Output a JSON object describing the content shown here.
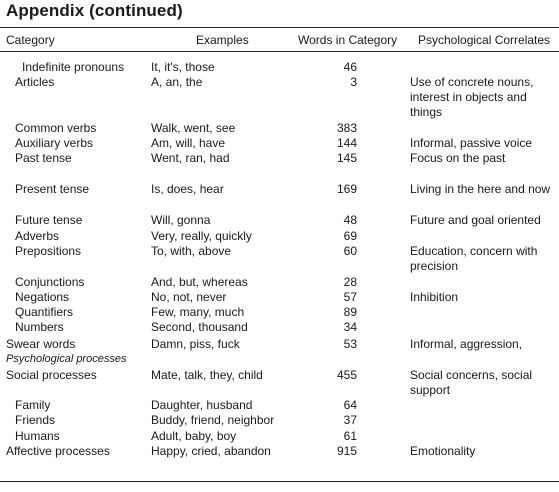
{
  "title": "Appendix (continued)",
  "headers": {
    "category": "Category",
    "examples": "Examples",
    "words": "Words in Category",
    "psych": "Psychological Correlates"
  },
  "rows": [
    {
      "category": "Indefinite pronouns",
      "examples": "It, it's, those",
      "words": "46",
      "psych": ""
    },
    {
      "category": "Articles",
      "examples": "A, an, the",
      "words": "3",
      "psych": "Use of concrete nouns, interest in objects and things"
    },
    {
      "category": "Common verbs",
      "examples": "Walk, went, see",
      "words": "383",
      "psych": ""
    },
    {
      "category": "Auxiliary verbs",
      "examples": "Am, will, have",
      "words": "144",
      "psych": "Informal, passive voice"
    },
    {
      "category": "Past tense",
      "examples": "Went, ran, had",
      "words": "145",
      "psych": "Focus on the past"
    },
    {
      "category": "Present tense",
      "examples": "Is, does, hear",
      "words": "169",
      "psych": "Living in the here and now"
    },
    {
      "category": "Future tense",
      "examples": "Will, gonna",
      "words": "48",
      "psych": "Future and goal oriented"
    },
    {
      "category": "Adverbs",
      "examples": "Very, really, quickly",
      "words": "69",
      "psych": ""
    },
    {
      "category": "Prepositions",
      "examples": "To, with, above",
      "words": "60",
      "psych": "Education, concern with precision"
    },
    {
      "category": "Conjunctions",
      "examples": "And, but, whereas",
      "words": "28",
      "psych": ""
    },
    {
      "category": "Negations",
      "examples": "No, not, never",
      "words": "57",
      "psych": "Inhibition"
    },
    {
      "category": "Quantifiers",
      "examples": "Few, many, much",
      "words": "89",
      "psych": ""
    },
    {
      "category": "Numbers",
      "examples": "Second, thousand",
      "words": "34",
      "psych": ""
    },
    {
      "category": "Swear words",
      "examples": "Damn, piss, fuck",
      "words": "53",
      "psych": "Informal, aggression,"
    },
    {
      "category": "Psychological processes",
      "examples": "",
      "words": "",
      "psych": ""
    },
    {
      "category": "Social processes",
      "examples": "Mate, talk, they, child",
      "words": "455",
      "psych": "Social concerns, social support"
    },
    {
      "category": "Family",
      "examples": "Daughter, husband",
      "words": "64",
      "psych": ""
    },
    {
      "category": "Friends",
      "examples": "Buddy, friend, neighbor",
      "words": "37",
      "psych": ""
    },
    {
      "category": "Humans",
      "examples": "Adult, baby, boy",
      "words": "61",
      "psych": ""
    },
    {
      "category": "Affective processes",
      "examples": "Happy, cried, abandon",
      "words": "915",
      "psych": "Emotionality"
    }
  ]
}
